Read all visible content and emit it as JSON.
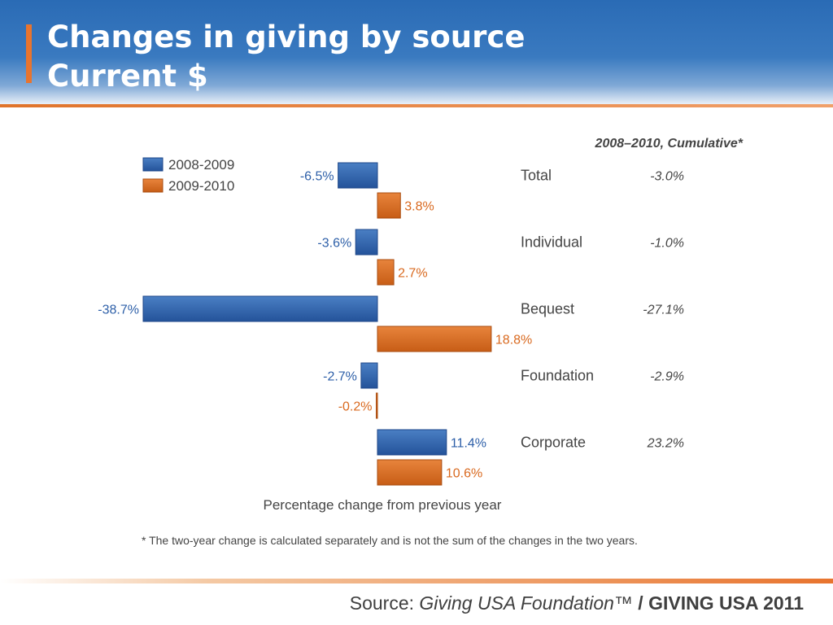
{
  "slide": {
    "title_line1": "Changes in giving by source",
    "title_line2": "Current $"
  },
  "colors": {
    "header_blue": "#2a6bb5",
    "accent_orange": "#e8742e",
    "series_2008_2009": "#2d5fa8",
    "series_2009_2010": "#d9691f"
  },
  "chart_data": {
    "type": "bar",
    "orientation": "horizontal",
    "categories": [
      "Total",
      "Individual",
      "Bequest",
      "Foundation",
      "Corporate"
    ],
    "series": [
      {
        "name": "2008-2009",
        "values": [
          -6.5,
          -3.6,
          -38.7,
          -2.7,
          11.4
        ],
        "labels": [
          "-6.5%",
          "-3.6%",
          "-38.7%",
          "-2.7%",
          "11.4%"
        ]
      },
      {
        "name": "2009-2010",
        "values": [
          3.8,
          2.7,
          18.8,
          -0.2,
          10.6
        ],
        "labels": [
          "3.8%",
          "2.7%",
          "18.8%",
          "-0.2%",
          "10.6%"
        ]
      }
    ],
    "cumulative": {
      "header": "2008–2010, Cumulative*",
      "values": [
        -3.0,
        -1.0,
        -27.1,
        -2.9,
        23.2
      ],
      "labels": [
        "-3.0%",
        "-1.0%",
        "-27.1%",
        "-2.9%",
        "23.2%"
      ]
    },
    "xlabel": "Percentage change from previous year",
    "xlim": [
      -38.7,
      18.8
    ],
    "legend_position": "top-left",
    "grid": false,
    "footnote": "* The two-year change is calculated separately and is not the sum of the changes in the two years."
  },
  "source": {
    "prefix": "Source: ",
    "italic": "Giving USA Foundation™",
    "bold": " / GIVING USA 2011"
  }
}
